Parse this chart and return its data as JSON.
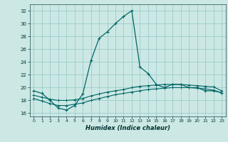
{
  "xlabel": "Humidex (Indice chaleur)",
  "background_color": "#cce8e4",
  "grid_color": "#99cccc",
  "line_color": "#006666",
  "xlim": [
    -0.5,
    23.5
  ],
  "ylim": [
    15.5,
    33.0
  ],
  "xticks": [
    0,
    1,
    2,
    3,
    4,
    5,
    6,
    7,
    8,
    9,
    10,
    11,
    12,
    13,
    14,
    15,
    16,
    17,
    18,
    19,
    20,
    21,
    22,
    23
  ],
  "yticks": [
    16,
    18,
    20,
    22,
    24,
    26,
    28,
    30,
    32
  ],
  "curve1_x": [
    0,
    1,
    2,
    3,
    4,
    5,
    6,
    7,
    8,
    9,
    10,
    11,
    12,
    13,
    14,
    15,
    16,
    17,
    18,
    19,
    20,
    21,
    22,
    23
  ],
  "curve1_y": [
    19.5,
    19.1,
    18.0,
    16.8,
    16.5,
    17.2,
    19.0,
    24.2,
    27.7,
    28.7,
    30.0,
    31.1,
    32.0,
    23.2,
    22.2,
    20.5,
    20.0,
    20.5,
    20.5,
    20.0,
    20.0,
    19.5,
    19.5,
    19.2
  ],
  "curve2_x": [
    0,
    1,
    2,
    3,
    4,
    5,
    6,
    7,
    8,
    9,
    10,
    11,
    12,
    13,
    14,
    15,
    16,
    17,
    18,
    19,
    20,
    21,
    22,
    23
  ],
  "curve2_y": [
    18.3,
    17.9,
    17.5,
    17.2,
    17.2,
    17.4,
    17.6,
    18.0,
    18.3,
    18.6,
    18.9,
    19.1,
    19.3,
    19.5,
    19.7,
    19.8,
    19.9,
    20.0,
    20.0,
    20.0,
    19.9,
    19.8,
    19.6,
    19.2
  ],
  "curve3_x": [
    0,
    1,
    2,
    3,
    4,
    5,
    6,
    7,
    8,
    9,
    10,
    11,
    12,
    13,
    14,
    15,
    16,
    17,
    18,
    19,
    20,
    21,
    22,
    23
  ],
  "curve3_y": [
    18.8,
    18.5,
    18.2,
    18.0,
    18.0,
    18.1,
    18.3,
    18.7,
    19.0,
    19.3,
    19.5,
    19.7,
    20.0,
    20.2,
    20.3,
    20.4,
    20.5,
    20.5,
    20.5,
    20.4,
    20.3,
    20.2,
    20.1,
    19.5
  ]
}
